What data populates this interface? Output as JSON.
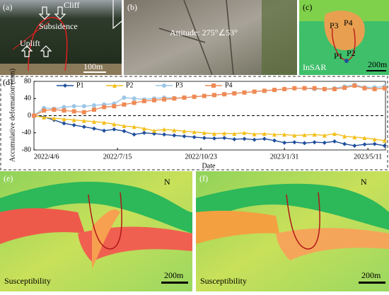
{
  "chart_data": {
    "type": "line",
    "y_label": "Accumulative deformation (mm)",
    "x_label": "Date",
    "x": [
      "2022/4/6",
      "2022/4/18",
      "2022/4/30",
      "2022/5/12",
      "2022/5/24",
      "2022/6/5",
      "2022/6/17",
      "2022/6/29",
      "2022/7/11",
      "2022/7/23",
      "2022/8/4",
      "2022/8/16",
      "2022/8/28",
      "2022/9/9",
      "2022/9/21",
      "2022/10/3",
      "2022/10/15",
      "2022/10/27",
      "2022/11/8",
      "2022/11/20",
      "2022/12/2",
      "2022/12/14",
      "2022/12/26",
      "2023/1/7",
      "2023/1/19",
      "2023/1/31",
      "2023/2/12",
      "2023/2/24",
      "2023/3/8",
      "2023/3/20",
      "2023/4/1",
      "2023/4/13",
      "2023/4/25",
      "2023/5/7",
      "2023/5/19",
      "2023/5/31"
    ],
    "series": [
      {
        "name": "P1",
        "color": "#1f4e9c",
        "marker": "diamond",
        "values": [
          0,
          -3,
          -10,
          -18,
          -22,
          -26,
          -30,
          -35,
          -32,
          -36,
          -44,
          -40,
          -42,
          -44,
          -46,
          -48,
          -50,
          -52,
          -53,
          -52,
          -55,
          -54,
          -56,
          -54,
          -58,
          -63,
          -62,
          -64,
          -62,
          -63,
          -60,
          -66,
          -70,
          -67,
          -66,
          -70
        ]
      },
      {
        "name": "P2",
        "color": "#f2bf1a",
        "marker": "triangle",
        "values": [
          0,
          -4,
          -6,
          -8,
          -10,
          -12,
          -14,
          -16,
          -20,
          -24,
          -26,
          -30,
          -35,
          -32,
          -34,
          -36,
          -38,
          -40,
          -42,
          -41,
          -42,
          -40,
          -43,
          -42,
          -44,
          -44,
          -46,
          -45,
          -44,
          -46,
          -42,
          -48,
          -50,
          -52,
          -55,
          -58
        ]
      },
      {
        "name": "P3",
        "color": "#9cc6e6",
        "marker": "circle",
        "values": [
          0,
          18,
          16,
          20,
          22,
          22,
          24,
          26,
          28,
          42,
          40,
          38,
          40,
          42,
          41,
          42,
          44,
          46,
          48,
          50,
          52,
          54,
          56,
          58,
          60,
          62,
          64,
          64,
          62,
          62,
          64,
          68,
          72,
          66,
          66,
          68
        ]
      },
      {
        "name": "P4",
        "color": "#ef8a55",
        "marker": "square",
        "values": [
          0,
          12,
          14,
          12,
          10,
          8,
          14,
          20,
          22,
          26,
          30,
          34,
          36,
          38,
          40,
          42,
          44,
          46,
          48,
          50,
          52,
          54,
          56,
          58,
          60,
          62,
          64,
          64,
          64,
          62,
          62,
          65,
          70,
          64,
          62,
          64
        ]
      }
    ],
    "xlim": [
      "2022/4/6",
      "2023/6/1"
    ],
    "xticks": [
      "2022/4/6",
      "2022/7/15",
      "2022/10/23",
      "2023/1/31",
      "2023/5/11"
    ],
    "ylim": [
      -80,
      80
    ],
    "yticks": [
      -80,
      -40,
      0,
      40,
      80
    ]
  },
  "panels": [
    {
      "label": "(a)",
      "texts": [
        "Cliff",
        "Subsidence",
        "Uplift",
        "100m"
      ]
    },
    {
      "label": "(b)",
      "texts": [
        "Attitude: 275°∠53°"
      ]
    },
    {
      "label": "(c)",
      "texts": [
        "P3",
        "P4",
        "P1",
        "P2",
        "InSAR",
        "200m"
      ]
    },
    {
      "label": "(d)",
      "texts": []
    },
    {
      "label": "(e)",
      "texts": [
        "N",
        "Susceptibility",
        "200m"
      ]
    },
    {
      "label": "(f)",
      "texts": [
        "N",
        "Susceptibility",
        "200m"
      ]
    }
  ]
}
